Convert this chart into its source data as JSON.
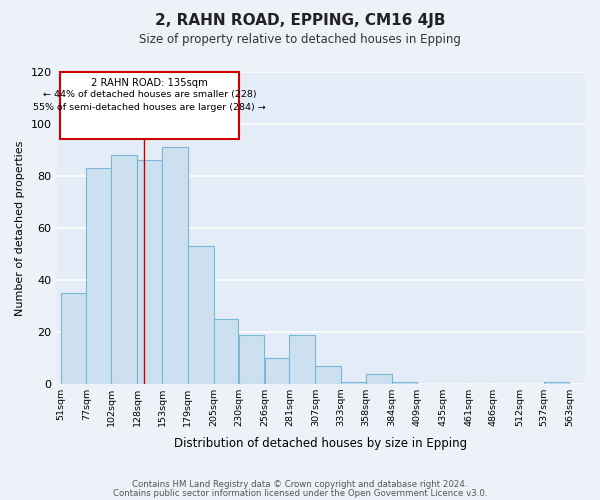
{
  "title": "2, RAHN ROAD, EPPING, CM16 4JB",
  "subtitle": "Size of property relative to detached houses in Epping",
  "xlabel": "Distribution of detached houses by size in Epping",
  "ylabel": "Number of detached properties",
  "bar_values": [
    35,
    83,
    88,
    86,
    91,
    53,
    25,
    19,
    10,
    19,
    7,
    1,
    4,
    1,
    0,
    0,
    0,
    0,
    0,
    1
  ],
  "bin_edges": [
    51,
    77,
    102,
    128,
    153,
    179,
    205,
    230,
    256,
    281,
    307,
    333,
    358,
    384,
    409,
    435,
    461,
    486,
    512,
    537,
    563
  ],
  "all_labels": [
    "51sqm",
    "77sqm",
    "102sqm",
    "128sqm",
    "153sqm",
    "179sqm",
    "205sqm",
    "230sqm",
    "256sqm",
    "281sqm",
    "307sqm",
    "333sqm",
    "358sqm",
    "384sqm",
    "409sqm",
    "435sqm",
    "461sqm",
    "486sqm",
    "512sqm",
    "537sqm",
    "563sqm"
  ],
  "bar_color": "#cce0f0",
  "bar_edge_color": "#7ab8d8",
  "fig_background_color": "#edf2f9",
  "ax_background_color": "#e4ecf7",
  "grid_color": "#d0d8e8",
  "red_line_x": 135,
  "annotation_line1": "2 RAHN ROAD: 135sqm",
  "annotation_line2": "← 44% of detached houses are smaller (228)",
  "annotation_line3": "55% of semi-detached houses are larger (284) →",
  "ylim": [
    0,
    120
  ],
  "yticks": [
    0,
    20,
    40,
    60,
    80,
    100,
    120
  ],
  "footer_line1": "Contains HM Land Registry data © Crown copyright and database right 2024.",
  "footer_line2": "Contains public sector information licensed under the Open Government Licence v3.0."
}
